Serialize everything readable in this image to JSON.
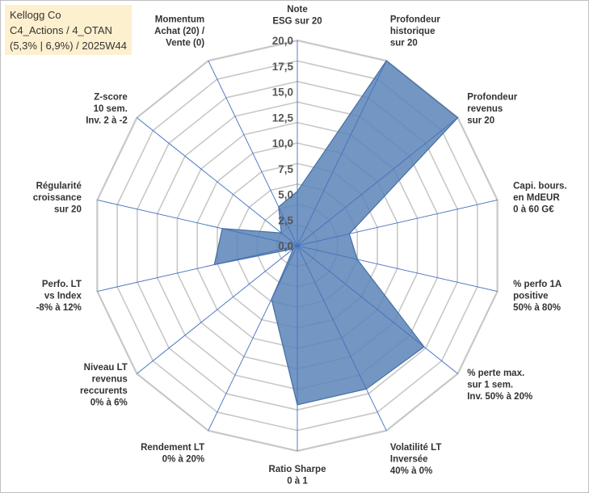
{
  "title_box": {
    "line1": "Kellogg Co",
    "line2": "C4_Actions / 4_OTAN",
    "line3": "(5,3% | 6,9%) / 2025W44"
  },
  "chart_data": {
    "type": "radar",
    "rmin": 0,
    "rmax": 20,
    "ticks": [
      "0,0",
      "2,5",
      "5,0",
      "7,5",
      "10,0",
      "12,5",
      "15,0",
      "17,5",
      "20,0"
    ],
    "tick_values": [
      0,
      2.5,
      5,
      7.5,
      10,
      12.5,
      15,
      17.5,
      20
    ],
    "axes": [
      {
        "label": [
          "Note",
          "ESG sur 20"
        ],
        "value": 5.3
      },
      {
        "label": [
          "Profondeur",
          "historique",
          "sur 20"
        ],
        "value": 20
      },
      {
        "label": [
          "Profondeur",
          "revenus",
          "sur 20"
        ],
        "value": 20
      },
      {
        "label": [
          "Capi. bours.",
          "en MdEUR",
          "0 à 60 G€"
        ],
        "value": 5.2
      },
      {
        "label": [
          "% perfo 1A",
          "positive",
          "50% à 80%"
        ],
        "value": 6
      },
      {
        "label": [
          "% perte max.",
          "sur 1 sem.",
          "Inv. 50% à 20%"
        ],
        "value": 15.8
      },
      {
        "label": [
          "Volatilité LT",
          "Inversée",
          "40% à 0%"
        ],
        "value": 15.5
      },
      {
        "label": [
          "Ratio Sharpe",
          "0 à 1"
        ],
        "value": 15.5
      },
      {
        "label": [
          "Rendement LT",
          "0% à 20%"
        ],
        "value": 5.8
      },
      {
        "label": [
          "Niveau LT",
          "revenus",
          "reccurents",
          "0% à 6%"
        ],
        "value": 0.5
      },
      {
        "label": [
          "Perfo. LT",
          "vs Index",
          "-8% à 12%"
        ],
        "value": 8.3
      },
      {
        "label": [
          "Régularité",
          "croissance",
          "sur 20"
        ],
        "value": 7.5
      },
      {
        "label": [
          "Z-score",
          "10 sem.",
          "Inv. 2 à -2"
        ],
        "value": 2
      },
      {
        "label": [
          "Momentum",
          "Achat (20) /",
          "Vente (0)"
        ],
        "value": 4.2
      }
    ],
    "colors": {
      "fill": "#5b84b8",
      "stroke": "#456fa3",
      "grid": "#c8c8c8",
      "spoke": "#3f6fbf"
    },
    "grid": true,
    "legend": "none"
  }
}
